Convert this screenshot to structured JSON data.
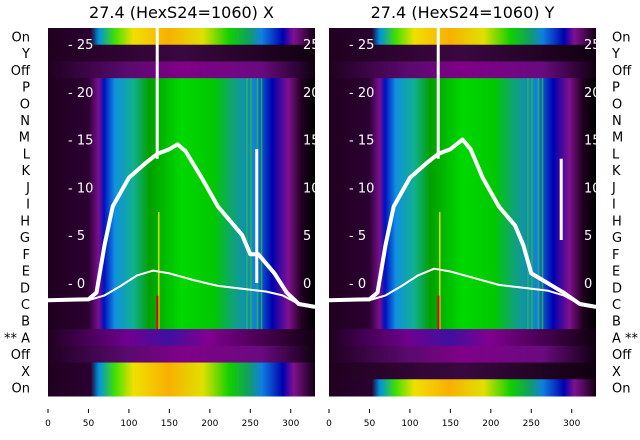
{
  "chart_data": [
    {
      "type": "heatmap",
      "title": "27.4 (HexS24=1060) X",
      "row_labels": [
        "On",
        "Y",
        "Off",
        "P",
        "O",
        "N",
        "M",
        "L",
        "K",
        "J",
        "I",
        "H",
        "G",
        "F",
        "E",
        "D",
        "C",
        "B",
        "** A",
        "Off",
        "X",
        "On"
      ],
      "xticks": [
        0,
        50,
        100,
        150,
        200,
        250,
        300
      ],
      "xlim": [
        0,
        330
      ],
      "overlay_yticks": [
        0,
        5,
        10,
        15,
        20,
        25
      ],
      "overlay_ylim": [
        -4,
        26.5
      ],
      "series": [
        {
          "name": "thick",
          "x": [
            0,
            50,
            60,
            70,
            80,
            100,
            120,
            135,
            150,
            160,
            170,
            190,
            210,
            230,
            240,
            250,
            260,
            270,
            280,
            295,
            310,
            330
          ],
          "y": [
            -1.8,
            -1.7,
            -1,
            4,
            8,
            11,
            12.5,
            13.5,
            14,
            14.5,
            13.8,
            11,
            8,
            6,
            5,
            3,
            3,
            2,
            1,
            -1,
            -2.2,
            -2.5
          ]
        },
        {
          "name": "thin",
          "x": [
            0,
            50,
            70,
            90,
            110,
            130,
            150,
            180,
            210,
            240,
            270,
            290,
            310,
            330
          ],
          "y": [
            -1.8,
            -1.8,
            -1.3,
            -0.3,
            0.8,
            1.3,
            1,
            0.3,
            -0.3,
            -0.6,
            -0.9,
            -1.3,
            -2.2,
            -2.5
          ]
        }
      ],
      "spikes_x": [
        135,
        258
      ]
    },
    {
      "type": "heatmap",
      "title": "27.4 (HexS24=1060) Y",
      "row_labels": [
        "On",
        "Y",
        "Off",
        "P",
        "O",
        "N",
        "M",
        "L",
        "K",
        "J",
        "I",
        "H",
        "G",
        "F",
        "E",
        "D",
        "C",
        "B",
        "A **",
        "Off",
        "X",
        "On"
      ],
      "xticks": [
        0,
        50,
        100,
        150,
        200,
        250,
        300
      ],
      "xlim": [
        0,
        330
      ],
      "overlay_yticks": [
        0,
        5,
        10,
        15,
        20,
        25
      ],
      "overlay_ylim": [
        -4,
        26.5
      ],
      "series": [
        {
          "name": "thick",
          "x": [
            0,
            50,
            60,
            70,
            80,
            100,
            120,
            135,
            150,
            165,
            175,
            190,
            210,
            230,
            240,
            250,
            270,
            280,
            290,
            310,
            330
          ],
          "y": [
            -1.8,
            -1.7,
            -1,
            4,
            8,
            11,
            12.5,
            13.5,
            14,
            15,
            14,
            11,
            8,
            6,
            4,
            1,
            0,
            -0.5,
            -1,
            -2.2,
            -2.5
          ]
        },
        {
          "name": "thin",
          "x": [
            0,
            50,
            70,
            90,
            110,
            130,
            150,
            180,
            210,
            240,
            270,
            290,
            310,
            330
          ],
          "y": [
            -1.8,
            -1.8,
            -1.3,
            -0.3,
            0.8,
            1.5,
            1.2,
            0.5,
            -0.2,
            -0.5,
            -0.8,
            -1.3,
            -2.2,
            -2.5
          ]
        }
      ],
      "spikes_x": [
        135,
        287
      ]
    }
  ]
}
